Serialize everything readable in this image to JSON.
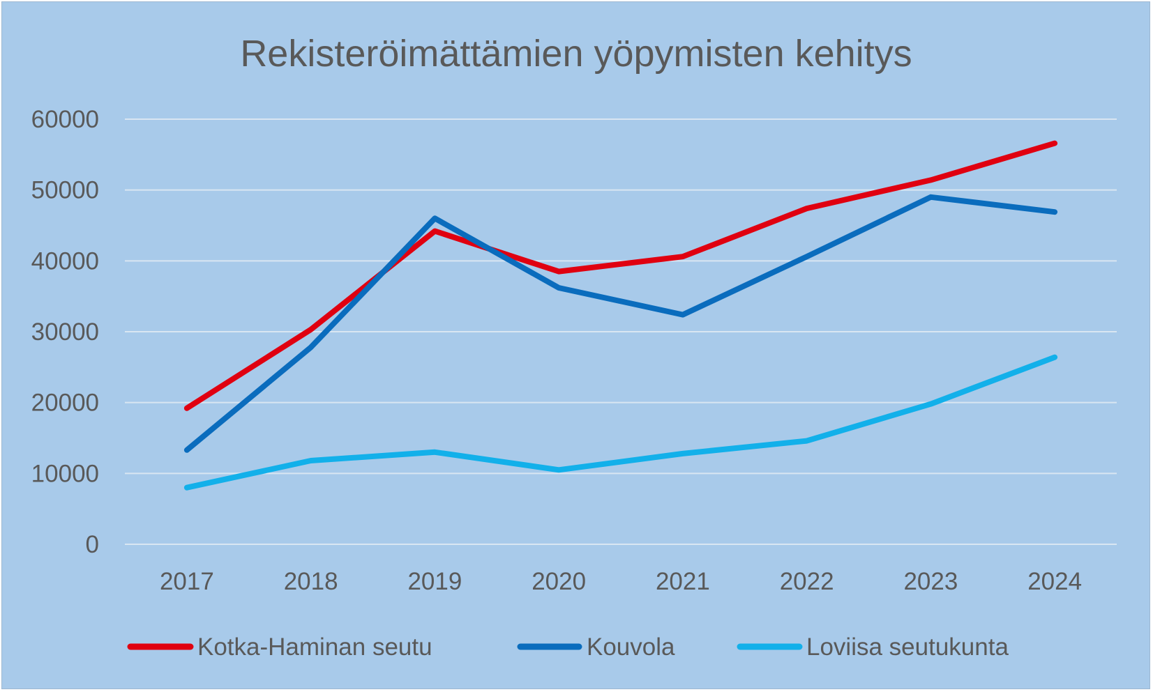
{
  "chart_data": {
    "type": "line",
    "title": "Rekisteröimättämien yöpymisten kehitys",
    "xlabel": "",
    "ylabel": "",
    "categories": [
      "2017",
      "2018",
      "2019",
      "2020",
      "2021",
      "2022",
      "2023",
      "2024"
    ],
    "y_ticks": [
      "0",
      "10000",
      "20000",
      "30000",
      "40000",
      "50000",
      "60000"
    ],
    "ylim": [
      0,
      60000
    ],
    "grid": true,
    "legend_position": "bottom",
    "series": [
      {
        "name": "Kotka-Haminan seutu",
        "color": "#e00010",
        "values": [
          19200,
          30300,
          44200,
          38500,
          40600,
          47400,
          51400,
          56600
        ]
      },
      {
        "name": "Kouvola",
        "color": "#0a6cbd",
        "values": [
          13300,
          27800,
          46000,
          36200,
          32400,
          40600,
          49000,
          46900
        ]
      },
      {
        "name": "Loviisa seutukunta",
        "color": "#12b0ea",
        "values": [
          8000,
          11800,
          13000,
          10500,
          12800,
          14600,
          19800,
          26400
        ]
      }
    ]
  }
}
